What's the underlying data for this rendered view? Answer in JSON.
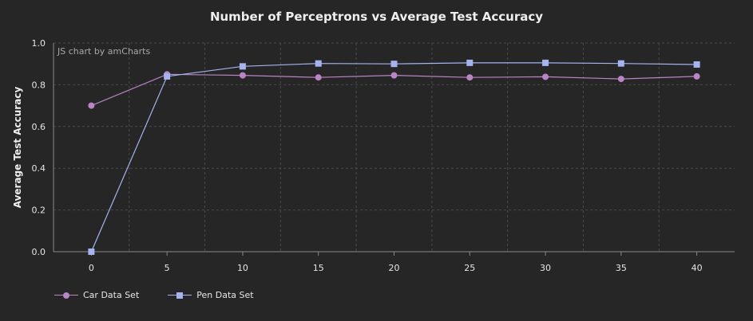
{
  "title": "Number of Perceptrons vs Average Test Accuracy",
  "credit": "JS chart by amCharts",
  "colors": {
    "background": "#262626",
    "car": "#b985c4",
    "pen": "#a5b3ee",
    "grid": "#4a4a4a",
    "axis": "#8a8a8a"
  },
  "chart_data": {
    "type": "line",
    "title": "Number of Perceptrons vs Average Test Accuracy",
    "xlabel": "",
    "ylabel": "Average Test Accuracy",
    "x": [
      0,
      5,
      10,
      15,
      20,
      25,
      30,
      35,
      40
    ],
    "xlim": [
      -2.5,
      42.5
    ],
    "ylim": [
      0,
      1
    ],
    "x_ticks": [
      "0",
      "5",
      "10",
      "15",
      "20",
      "25",
      "30",
      "35",
      "40"
    ],
    "y_ticks": [
      "0.0",
      "0.2",
      "0.4",
      "0.6",
      "0.8",
      "1.0"
    ],
    "grid": true,
    "legend_position": "bottom-left",
    "series": [
      {
        "name": "Car Data Set",
        "marker": "circle",
        "color": "#b985c4",
        "values": [
          0.7,
          0.85,
          0.845,
          0.835,
          0.845,
          0.835,
          0.838,
          0.828,
          0.84
        ]
      },
      {
        "name": "Pen Data Set",
        "marker": "square",
        "color": "#a5b3ee",
        "values": [
          0.0,
          0.84,
          0.888,
          0.902,
          0.9,
          0.905,
          0.905,
          0.902,
          0.897
        ]
      }
    ]
  }
}
